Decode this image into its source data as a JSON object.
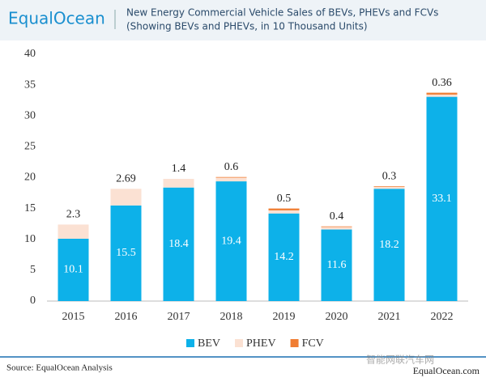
{
  "brand": "EqualOcean",
  "chart_data": {
    "type": "stacked_bar",
    "title": "New Energy Commercial Vehicle Sales of BEVs, PHEVs and FCVs",
    "subtitle": "(Showing BEVs and PHEVs, in 10 Thousand Units)",
    "categories": [
      "2015",
      "2016",
      "2017",
      "2018",
      "2019",
      "2020",
      "2021",
      "2022"
    ],
    "series": [
      {
        "name": "BEV",
        "color": "#0db1e9",
        "values": [
          10.1,
          15.5,
          18.4,
          19.4,
          14.2,
          11.6,
          18.2,
          33.1
        ]
      },
      {
        "name": "PHEV",
        "color": "#fbe1d3",
        "values": [
          2.3,
          2.69,
          1.4,
          0.6,
          0.5,
          0.4,
          0.3,
          0.36
        ]
      },
      {
        "name": "FCV",
        "color": "#f07d32",
        "values": [
          0,
          0,
          0,
          0.1,
          0.3,
          0.1,
          0.1,
          0.3
        ]
      }
    ],
    "ylim": [
      0,
      40
    ],
    "yticks": [
      0,
      5,
      10,
      15,
      20,
      25,
      30,
      35,
      40
    ],
    "grid": false,
    "legend": "bottom"
  },
  "footer": {
    "source": "Source: EqualOcean Analysis",
    "site": "EqualOcean.com",
    "watermark": "智能网联汽车网"
  }
}
